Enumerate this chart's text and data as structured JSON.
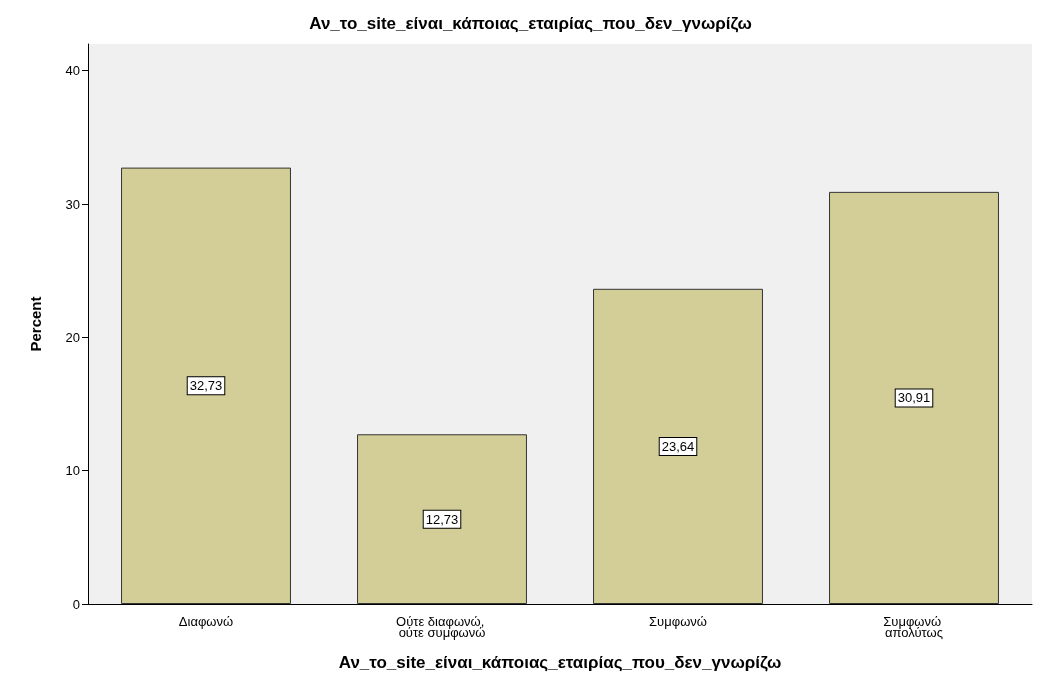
{
  "chart_data": {
    "type": "bar",
    "title": "Αν_το_site_είναι_κάποιας_εταιρίας_που_δεν_γνωρίζω",
    "xlabel": "Αν_το_site_είναι_κάποιας_εταιρίας_που_δεν_γνωρίζω",
    "ylabel": "Percent",
    "categories": [
      "Διαφωνώ",
      "Ούτε διαφωνώ, ούτε συμφωνώ",
      "Συμφωνώ",
      "Συμφωνώ απολύτως"
    ],
    "values": [
      32.73,
      12.73,
      23.64,
      30.91
    ],
    "value_labels": [
      "32,73",
      "12,73",
      "23,64",
      "30,91"
    ],
    "color": "#d3ce97",
    "ylim": [
      0,
      42
    ],
    "yticks": [
      0,
      10,
      20,
      30,
      40
    ],
    "grid": false
  }
}
